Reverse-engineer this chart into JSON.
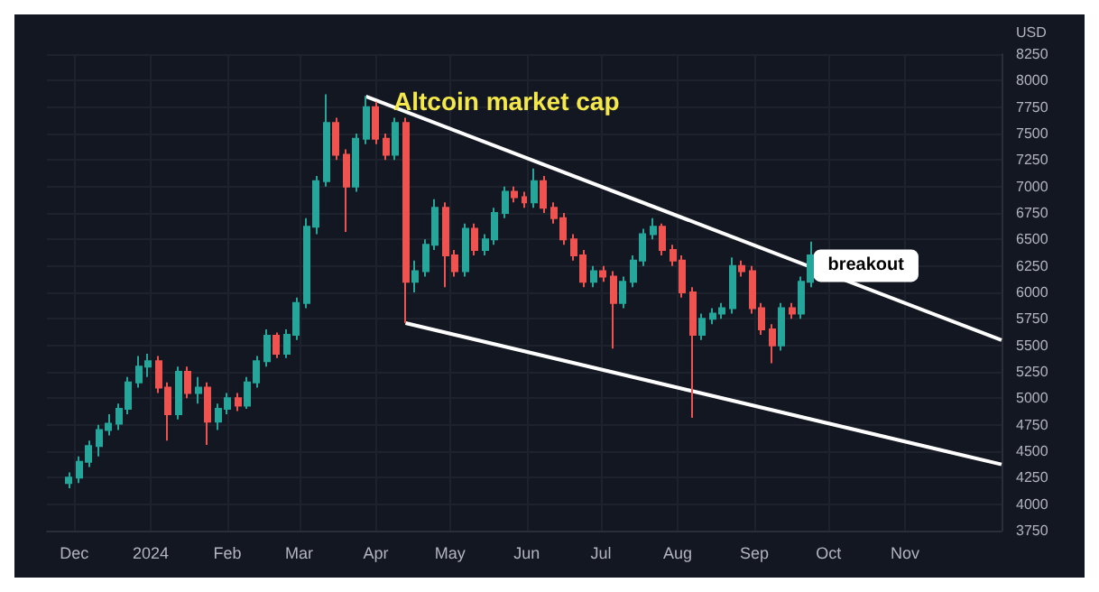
{
  "chart_data": {
    "type": "candlestick",
    "title": "Altcoin market cap",
    "ylabel": "USD",
    "x": [
      "2023-11-29",
      "2023-12-03",
      "2023-12-07",
      "2023-12-11",
      "2023-12-15",
      "2023-12-19",
      "2023-12-23",
      "2023-12-27",
      "2023-12-31",
      "2024-01-04",
      "2024-01-08",
      "2024-01-12",
      "2024-01-16",
      "2024-01-20",
      "2024-01-24",
      "2024-01-28",
      "2024-02-01",
      "2024-02-05",
      "2024-02-09",
      "2024-02-13",
      "2024-02-17",
      "2024-02-21",
      "2024-02-25",
      "2024-02-29",
      "2024-03-04",
      "2024-03-08",
      "2024-03-12",
      "2024-03-16",
      "2024-03-20",
      "2024-03-24",
      "2024-03-28",
      "2024-04-01",
      "2024-04-05",
      "2024-04-09",
      "2024-04-13",
      "2024-04-17",
      "2024-04-21",
      "2024-04-25",
      "2024-04-29",
      "2024-05-03",
      "2024-05-07",
      "2024-05-11",
      "2024-05-15",
      "2024-05-19",
      "2024-05-23",
      "2024-05-27",
      "2024-05-31",
      "2024-06-04",
      "2024-06-08",
      "2024-06-12",
      "2024-06-16",
      "2024-06-20",
      "2024-06-24",
      "2024-06-28",
      "2024-07-02",
      "2024-07-06",
      "2024-07-10",
      "2024-07-14",
      "2024-07-18",
      "2024-07-22",
      "2024-07-26",
      "2024-07-30",
      "2024-08-03",
      "2024-08-07",
      "2024-08-11",
      "2024-08-15",
      "2024-08-19",
      "2024-08-23",
      "2024-08-27",
      "2024-08-31",
      "2024-09-04",
      "2024-09-08",
      "2024-09-12",
      "2024-09-16",
      "2024-09-20",
      "2024-09-24"
    ],
    "ohlc": [
      [
        4200,
        4300,
        4150,
        4250
      ],
      [
        4250,
        4450,
        4200,
        4400
      ],
      [
        4400,
        4600,
        4350,
        4550
      ],
      [
        4550,
        4750,
        4450,
        4700
      ],
      [
        4700,
        4850,
        4650,
        4760
      ],
      [
        4760,
        4950,
        4700,
        4900
      ],
      [
        4900,
        5200,
        4850,
        5150
      ],
      [
        5150,
        5400,
        5100,
        5300
      ],
      [
        5300,
        5420,
        5200,
        5350
      ],
      [
        5350,
        5400,
        5050,
        5100
      ],
      [
        5100,
        5150,
        4600,
        4850
      ],
      [
        4850,
        5300,
        4800,
        5250
      ],
      [
        5250,
        5300,
        5000,
        5050
      ],
      [
        5050,
        5200,
        4950,
        5100
      ],
      [
        5100,
        5150,
        4560,
        4780
      ],
      [
        4780,
        4950,
        4700,
        4900
      ],
      [
        4900,
        5050,
        4850,
        5000
      ],
      [
        5000,
        5050,
        4880,
        4930
      ],
      [
        4930,
        5200,
        4900,
        5150
      ],
      [
        5150,
        5400,
        5100,
        5350
      ],
      [
        5350,
        5650,
        5300,
        5590
      ],
      [
        5590,
        5620,
        5380,
        5420
      ],
      [
        5420,
        5650,
        5380,
        5600
      ],
      [
        5600,
        5950,
        5550,
        5900
      ],
      [
        5900,
        6700,
        5850,
        6620
      ],
      [
        6620,
        7100,
        6550,
        7050
      ],
      [
        7050,
        7870,
        7000,
        7600
      ],
      [
        7600,
        7650,
        7250,
        7300
      ],
      [
        7300,
        7350,
        6570,
        7000
      ],
      [
        7000,
        7500,
        6950,
        7450
      ],
      [
        7450,
        7855,
        7400,
        7750
      ],
      [
        7750,
        7800,
        7400,
        7450
      ],
      [
        7450,
        7500,
        7250,
        7300
      ],
      [
        7300,
        7650,
        7250,
        7600
      ],
      [
        7600,
        7650,
        5710,
        6100
      ],
      [
        6100,
        6300,
        6000,
        6200
      ],
      [
        6200,
        6500,
        6150,
        6450
      ],
      [
        6450,
        6880,
        6400,
        6800
      ],
      [
        6800,
        6850,
        6050,
        6350
      ],
      [
        6350,
        6400,
        6150,
        6200
      ],
      [
        6200,
        6650,
        6150,
        6600
      ],
      [
        6600,
        6650,
        6350,
        6400
      ],
      [
        6400,
        6550,
        6350,
        6500
      ],
      [
        6500,
        6800,
        6450,
        6750
      ],
      [
        6750,
        7000,
        6700,
        6950
      ],
      [
        6950,
        7000,
        6850,
        6900
      ],
      [
        6900,
        6950,
        6800,
        6850
      ],
      [
        6850,
        7170,
        6800,
        7050
      ],
      [
        7050,
        7100,
        6750,
        6800
      ],
      [
        6800,
        6850,
        6650,
        6700
      ],
      [
        6700,
        6750,
        6450,
        6500
      ],
      [
        6500,
        6550,
        6300,
        6350
      ],
      [
        6350,
        6400,
        6050,
        6100
      ],
      [
        6100,
        6250,
        6050,
        6200
      ],
      [
        6200,
        6250,
        6100,
        6150
      ],
      [
        6150,
        6200,
        5470,
        5900
      ],
      [
        5900,
        6150,
        5850,
        6100
      ],
      [
        6100,
        6350,
        6050,
        6300
      ],
      [
        6300,
        6600,
        6250,
        6550
      ],
      [
        6550,
        6700,
        6500,
        6620
      ],
      [
        6620,
        6650,
        6350,
        6400
      ],
      [
        6400,
        6450,
        6250,
        6300
      ],
      [
        6300,
        6350,
        5950,
        6000
      ],
      [
        6000,
        6050,
        4815,
        5600
      ],
      [
        5600,
        5800,
        5550,
        5750
      ],
      [
        5750,
        5850,
        5700,
        5800
      ],
      [
        5800,
        5900,
        5750,
        5850
      ],
      [
        5850,
        6330,
        5800,
        6250
      ],
      [
        6250,
        6300,
        6150,
        6200
      ],
      [
        6200,
        6250,
        5800,
        5850
      ],
      [
        5850,
        5900,
        5600,
        5650
      ],
      [
        5650,
        5700,
        5330,
        5500
      ],
      [
        5500,
        5900,
        5450,
        5850
      ],
      [
        5850,
        5900,
        5750,
        5800
      ],
      [
        5800,
        6150,
        5750,
        6100
      ],
      [
        6100,
        6480,
        6050,
        6350
      ]
    ],
    "series": [
      {
        "type": "line",
        "x": [
          "2024-03-28",
          "2024-12-10"
        ],
        "values": [
          7850,
          5550
        ],
        "color": "#ffffff"
      },
      {
        "type": "line",
        "x": [
          "2024-04-13",
          "2024-12-10"
        ],
        "values": [
          5710,
          4375
        ],
        "color": "#ffffff"
      }
    ],
    "annotations": [
      {
        "text": "breakout",
        "x": "2024-09-22",
        "y": 6150
      }
    ],
    "xlim": [
      "2023-11-20",
      "2024-12-10"
    ],
    "xticks": [
      {
        "value": "2023-12-01",
        "label": "Dec"
      },
      {
        "value": "2024-01-01",
        "label": "2024"
      },
      {
        "value": "2024-02-01",
        "label": "Feb"
      },
      {
        "value": "2024-03-01",
        "label": "Mar"
      },
      {
        "value": "2024-04-01",
        "label": "Apr"
      },
      {
        "value": "2024-05-01",
        "label": "May"
      },
      {
        "value": "2024-06-01",
        "label": "Jun"
      },
      {
        "value": "2024-07-01",
        "label": "Jul"
      },
      {
        "value": "2024-08-01",
        "label": "Aug"
      },
      {
        "value": "2024-09-01",
        "label": "Sep"
      },
      {
        "value": "2024-10-01",
        "label": "Oct"
      },
      {
        "value": "2024-11-01",
        "label": "Nov"
      }
    ],
    "ylim": [
      3750,
      8250
    ],
    "yticks": [
      3750,
      4000,
      4250,
      4500,
      4750,
      5000,
      5250,
      5500,
      5750,
      6000,
      6250,
      6500,
      6750,
      7000,
      7250,
      7500,
      7750,
      8000,
      8250
    ],
    "grid": true
  }
}
